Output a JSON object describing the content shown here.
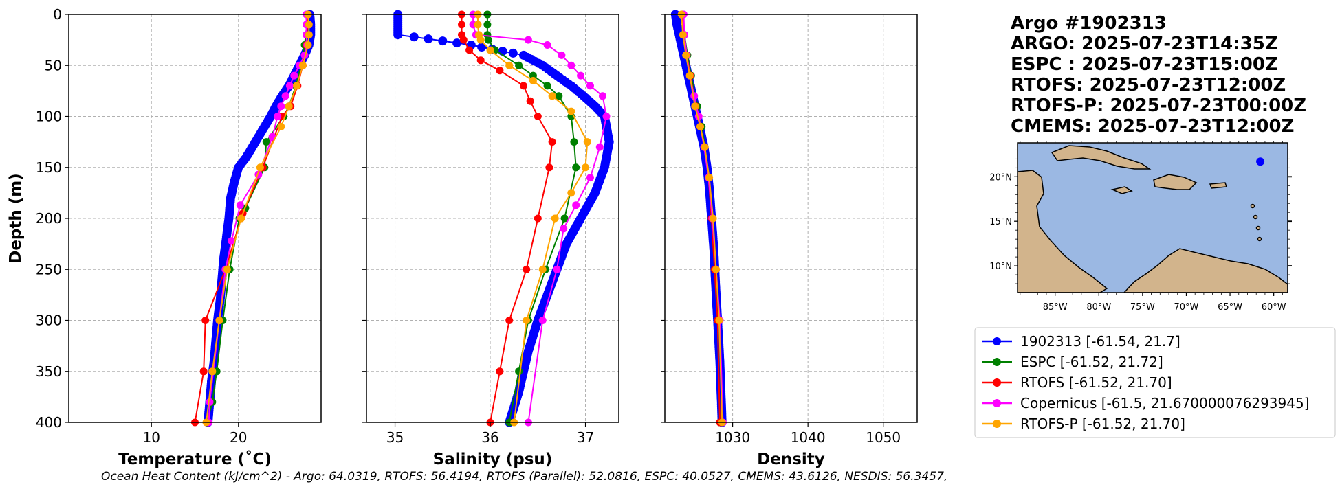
{
  "info": {
    "lines": [
      "Argo #1902313",
      "ARGO: 2025-07-23T14:35Z",
      "ESPC : 2025-07-23T15:00Z",
      "RTOFS: 2025-07-23T12:00Z",
      "RTOFS-P: 2025-07-23T00:00Z",
      "CMEMS: 2025-07-23T12:00Z"
    ]
  },
  "map": {
    "lat_ticks": [
      "20°N",
      "15°N",
      "10°N"
    ],
    "lon_ticks": [
      "85°W",
      "80°W",
      "75°W",
      "70°W",
      "65°W",
      "60°W"
    ],
    "float_lon": -61.54,
    "float_lat": 21.7,
    "ocean_color": "#9bb8e3",
    "land_color": "#d2b48c",
    "marker_color": "#0000ff"
  },
  "legend": {
    "entries": [
      {
        "label": "1902313 [-61.54, 21.7]",
        "color": "#0000ff"
      },
      {
        "label": "ESPC [-61.52, 21.72]",
        "color": "#008000"
      },
      {
        "label": "RTOFS [-61.52, 21.70]",
        "color": "#ff0000"
      },
      {
        "label": "Copernicus [-61.5, 21.670000076293945]",
        "color": "#ff00ff"
      },
      {
        "label": "RTOFS-P [-61.52, 21.70]",
        "color": "#ffa500"
      }
    ]
  },
  "footer": "Ocean Heat Content (kJ/cm^2) - Argo: 64.0319,  RTOFS: 56.4194,  RTOFS (Parallel): 52.0816,  ESPC: 40.0527,  CMEMS: 43.6126,  NESDIS: 56.3457,",
  "chart_data": [
    {
      "type": "line",
      "xlabel": "Temperature (˚C)",
      "ylabel": "Depth (m)",
      "xlim": [
        0.5,
        29.5
      ],
      "ylim": [
        400,
        0
      ],
      "xticks": [
        10,
        20
      ],
      "xtick_labels": [
        "10",
        "20"
      ],
      "yticks": [
        0,
        50,
        100,
        150,
        200,
        250,
        300,
        350,
        400
      ],
      "ytick_labels": [
        "0",
        "50",
        "100",
        "150",
        "200",
        "250",
        "300",
        "350",
        "400"
      ],
      "grid": true,
      "series": [
        {
          "name": "1902313",
          "color": "#0000ff",
          "dense": true,
          "x": [
            28.2,
            28.3,
            28.3,
            28.1,
            27.6,
            27.0,
            26.4,
            25.8,
            25.0,
            24.3,
            23.7,
            23.0,
            22.3,
            21.6,
            20.9,
            20.0,
            19.5,
            19.1,
            18.9,
            18.6,
            18.3,
            18.1,
            17.9,
            17.6,
            17.4,
            17.2,
            16.9,
            16.7,
            16.5
          ],
          "y": [
            0,
            10,
            20,
            30,
            40,
            50,
            60,
            70,
            80,
            90,
            100,
            110,
            120,
            130,
            140,
            150,
            165,
            180,
            200,
            220,
            240,
            260,
            280,
            300,
            320,
            340,
            360,
            380,
            400
          ]
        },
        {
          "name": "ESPC",
          "color": "#008000",
          "x": [
            28.0,
            27.6,
            27.2,
            26.6,
            25.8,
            25.2,
            23.2,
            23.0,
            20.8,
            20.1,
            19.0,
            18.2,
            17.5,
            17.0,
            16.4
          ],
          "y": [
            0,
            30,
            50,
            70,
            90,
            100,
            125,
            150,
            190,
            200,
            250,
            300,
            350,
            380,
            400
          ]
        },
        {
          "name": "RTOFS",
          "color": "#ff0000",
          "x": [
            28.0,
            27.8,
            27.4,
            26.8,
            26.0,
            25.0,
            22.8,
            20.5,
            20.3,
            18.5,
            16.2,
            16.0,
            15.0
          ],
          "y": [
            0,
            30,
            50,
            70,
            90,
            100,
            150,
            195,
            200,
            250,
            300,
            350,
            400
          ]
        },
        {
          "name": "Copernicus",
          "color": "#ff00ff",
          "x": [
            27.8,
            27.8,
            27.8,
            27.9,
            27.6,
            27.0,
            26.4,
            25.9,
            25.4,
            24.9,
            24.5,
            23.9,
            22.3,
            20.2,
            19.2,
            18.5,
            17.8,
            16.7,
            16.6
          ],
          "y": [
            0,
            10,
            20,
            30,
            40,
            50,
            60,
            70,
            80,
            90,
            100,
            120,
            157,
            187,
            222,
            250,
            300,
            380,
            400
          ]
        },
        {
          "name": "RTOFS-P",
          "color": "#ffa500",
          "x": [
            28.0,
            28.1,
            28.1,
            28.0,
            27.4,
            26.7,
            25.8,
            24.9,
            22.5,
            20.3,
            18.7,
            17.8,
            17.0,
            16.3
          ],
          "y": [
            0,
            10,
            20,
            30,
            50,
            70,
            90,
            110,
            150,
            200,
            250,
            300,
            350,
            400
          ]
        }
      ]
    },
    {
      "type": "line",
      "xlabel": "Salinity (psu)",
      "ylabel": "",
      "xlim": [
        34.7,
        37.35
      ],
      "ylim": [
        400,
        0
      ],
      "xticks": [
        35,
        36,
        37
      ],
      "xtick_labels": [
        "35",
        "36",
        "37"
      ],
      "yticks": [
        0,
        50,
        100,
        150,
        200,
        250,
        300,
        350,
        400
      ],
      "ytick_labels": [],
      "grid": true,
      "series": [
        {
          "name": "1902313",
          "color": "#0000ff",
          "dense": true,
          "x": [
            35.03,
            35.03,
            35.03,
            35.2,
            35.8,
            36.35,
            36.55,
            36.7,
            36.85,
            36.98,
            37.1,
            37.2,
            37.25,
            37.2,
            37.1,
            36.95,
            36.8,
            36.7,
            36.6,
            36.5,
            36.4,
            36.3,
            36.2
          ],
          "y": [
            0,
            10,
            20,
            22,
            30,
            40,
            50,
            60,
            70,
            80,
            90,
            100,
            125,
            150,
            175,
            200,
            225,
            250,
            275,
            300,
            330,
            370,
            400
          ]
        },
        {
          "name": "ESPC",
          "color": "#008000",
          "x": [
            35.97,
            35.97,
            35.97,
            35.98,
            36.05,
            36.3,
            36.45,
            36.6,
            36.72,
            36.85,
            36.88,
            36.9,
            36.78,
            36.58,
            36.4,
            36.3,
            36.2
          ],
          "y": [
            0,
            10,
            20,
            25,
            35,
            50,
            60,
            70,
            80,
            100,
            125,
            150,
            200,
            250,
            300,
            350,
            400
          ]
        },
        {
          "name": "RTOFS",
          "color": "#ff0000",
          "x": [
            35.7,
            35.7,
            35.7,
            35.72,
            35.78,
            35.9,
            36.1,
            36.35,
            36.42,
            36.5,
            36.65,
            36.62,
            36.5,
            36.38,
            36.2,
            36.1,
            36.0
          ],
          "y": [
            0,
            10,
            20,
            25,
            35,
            45,
            55,
            70,
            85,
            100,
            125,
            150,
            200,
            250,
            300,
            350,
            400
          ]
        },
        {
          "name": "Copernicus",
          "color": "#ff00ff",
          "x": [
            35.82,
            35.82,
            35.85,
            36.4,
            36.6,
            36.75,
            36.85,
            36.95,
            37.05,
            37.18,
            37.22,
            37.15,
            37.05,
            36.9,
            36.77,
            36.7,
            36.55,
            36.4
          ],
          "y": [
            0,
            10,
            20,
            25,
            30,
            40,
            50,
            60,
            70,
            80,
            100,
            130,
            160,
            187,
            210,
            250,
            300,
            400
          ]
        },
        {
          "name": "RTOFS-P",
          "color": "#ffa500",
          "x": [
            35.87,
            35.87,
            35.88,
            35.9,
            36.0,
            36.2,
            36.45,
            36.65,
            36.85,
            37.02,
            37.0,
            36.85,
            36.68,
            36.55,
            36.38,
            36.25
          ],
          "y": [
            0,
            10,
            20,
            25,
            35,
            50,
            65,
            80,
            95,
            125,
            150,
            175,
            200,
            250,
            300,
            400
          ]
        }
      ]
    },
    {
      "type": "line",
      "xlabel": "Density",
      "ylabel": "",
      "xlim": [
        1021.0,
        1054.5
      ],
      "ylim": [
        400,
        0
      ],
      "xticks": [
        1030,
        1040,
        1050
      ],
      "xtick_labels": [
        "1030",
        "1040",
        "1050"
      ],
      "yticks": [
        0,
        50,
        100,
        150,
        200,
        250,
        300,
        350,
        400
      ],
      "ytick_labels": [],
      "grid": true,
      "series": [
        {
          "name": "1902313",
          "color": "#0000ff",
          "dense": true,
          "x": [
            1022.4,
            1022.6,
            1022.9,
            1023.2,
            1023.5,
            1023.8,
            1024.1,
            1024.4,
            1024.7,
            1025.0,
            1025.3,
            1025.6,
            1025.9,
            1026.2,
            1026.6,
            1026.9,
            1027.2,
            1027.5,
            1027.7,
            1028.0,
            1028.3,
            1028.5,
            1028.6
          ],
          "y": [
            0,
            10,
            20,
            30,
            40,
            50,
            60,
            70,
            80,
            90,
            100,
            110,
            120,
            130,
            150,
            170,
            200,
            230,
            260,
            300,
            340,
            380,
            400
          ]
        },
        {
          "name": "ESPC",
          "color": "#008000",
          "x": [
            1023.4,
            1023.6,
            1024.0,
            1024.5,
            1025.3,
            1025.9,
            1026.3,
            1026.8,
            1027.2,
            1027.6,
            1028.0,
            1028.3
          ],
          "y": [
            0,
            20,
            40,
            60,
            90,
            110,
            130,
            160,
            200,
            250,
            300,
            400
          ]
        },
        {
          "name": "RTOFS",
          "color": "#ff0000",
          "x": [
            1023.3,
            1023.5,
            1023.9,
            1024.4,
            1025.1,
            1025.7,
            1026.3,
            1026.8,
            1027.2,
            1027.6,
            1028.0,
            1028.3
          ],
          "y": [
            0,
            20,
            40,
            60,
            90,
            110,
            130,
            160,
            200,
            250,
            300,
            400
          ]
        },
        {
          "name": "Copernicus",
          "color": "#ff00ff",
          "x": [
            1023.5,
            1023.6,
            1023.9,
            1024.3,
            1024.9,
            1025.5,
            1026.2,
            1026.8,
            1027.3,
            1027.8,
            1028.3,
            1028.7
          ],
          "y": [
            0,
            20,
            40,
            60,
            80,
            100,
            130,
            160,
            200,
            250,
            300,
            400
          ]
        },
        {
          "name": "RTOFS-P",
          "color": "#ffa500",
          "x": [
            1023.2,
            1023.4,
            1023.8,
            1024.3,
            1025.0,
            1025.7,
            1026.3,
            1026.9,
            1027.4,
            1027.8,
            1028.2,
            1028.6
          ],
          "y": [
            0,
            20,
            40,
            60,
            90,
            110,
            130,
            160,
            200,
            250,
            300,
            400
          ]
        }
      ]
    }
  ]
}
